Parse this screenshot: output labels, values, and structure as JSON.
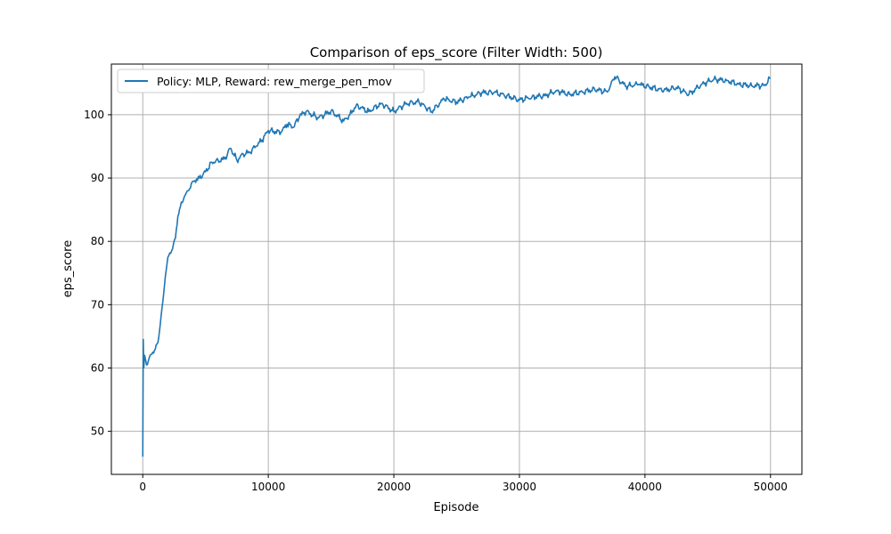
{
  "chart_data": {
    "type": "line",
    "title": "Comparison of eps_score (Filter Width: 500)",
    "xlabel": "Episode",
    "ylabel": "eps_score",
    "xlim": [
      -2500,
      52500
    ],
    "ylim": [
      43.2,
      108.0
    ],
    "xticks": [
      0,
      10000,
      20000,
      30000,
      40000,
      50000
    ],
    "yticks": [
      50,
      60,
      70,
      80,
      90,
      100
    ],
    "grid": true,
    "legend_position": "top-left",
    "series": [
      {
        "name": "Policy: MLP, Reward: rew_merge_pen_mov",
        "color": "#1f77b4",
        "points": [
          [
            0,
            46
          ],
          [
            20,
            55
          ],
          [
            40,
            64.5
          ],
          [
            80,
            60
          ],
          [
            150,
            62
          ],
          [
            300,
            60.5
          ],
          [
            500,
            61.5
          ],
          [
            800,
            62.5
          ],
          [
            1000,
            63
          ],
          [
            1200,
            64
          ],
          [
            1400,
            67
          ],
          [
            1600,
            70.5
          ],
          [
            1800,
            74.5
          ],
          [
            2000,
            77.5
          ],
          [
            2300,
            78.5
          ],
          [
            2600,
            80.5
          ],
          [
            2800,
            84
          ],
          [
            3000,
            85.5
          ],
          [
            3300,
            87
          ],
          [
            3600,
            88
          ],
          [
            4000,
            89.5
          ],
          [
            4500,
            90
          ],
          [
            5000,
            91
          ],
          [
            5500,
            92.5
          ],
          [
            6000,
            92.8
          ],
          [
            6500,
            93
          ],
          [
            7000,
            94.7
          ],
          [
            7500,
            92.8
          ],
          [
            8000,
            93.8
          ],
          [
            8500,
            94
          ],
          [
            9000,
            95
          ],
          [
            9500,
            96
          ],
          [
            10000,
            97.5
          ],
          [
            11000,
            97.2
          ],
          [
            11500,
            98.5
          ],
          [
            12000,
            98
          ],
          [
            12500,
            99.8
          ],
          [
            13000,
            100.5
          ],
          [
            14000,
            99.5
          ],
          [
            15000,
            100.6
          ],
          [
            16000,
            99
          ],
          [
            16500,
            100
          ],
          [
            17000,
            101.5
          ],
          [
            18000,
            100.5
          ],
          [
            19000,
            101.8
          ],
          [
            20000,
            100.5
          ],
          [
            21000,
            101.8
          ],
          [
            22000,
            102
          ],
          [
            23000,
            100.5
          ],
          [
            24000,
            102.5
          ],
          [
            25000,
            102
          ],
          [
            26000,
            102.8
          ],
          [
            27000,
            103.5
          ],
          [
            28000,
            103.5
          ],
          [
            29000,
            103
          ],
          [
            30000,
            102.3
          ],
          [
            31000,
            102.8
          ],
          [
            32000,
            103
          ],
          [
            33000,
            103.8
          ],
          [
            34000,
            103.2
          ],
          [
            35000,
            103.6
          ],
          [
            36000,
            104
          ],
          [
            37000,
            103.6
          ],
          [
            37600,
            106
          ],
          [
            38500,
            104.5
          ],
          [
            39500,
            104.8
          ],
          [
            40500,
            104.3
          ],
          [
            41500,
            103.8
          ],
          [
            42500,
            104.3
          ],
          [
            43500,
            103.2
          ],
          [
            44500,
            104.8
          ],
          [
            45500,
            105.6
          ],
          [
            46500,
            105.4
          ],
          [
            47500,
            104.8
          ],
          [
            48500,
            104.6
          ],
          [
            49500,
            104.6
          ],
          [
            50000,
            105.8
          ]
        ]
      }
    ]
  }
}
